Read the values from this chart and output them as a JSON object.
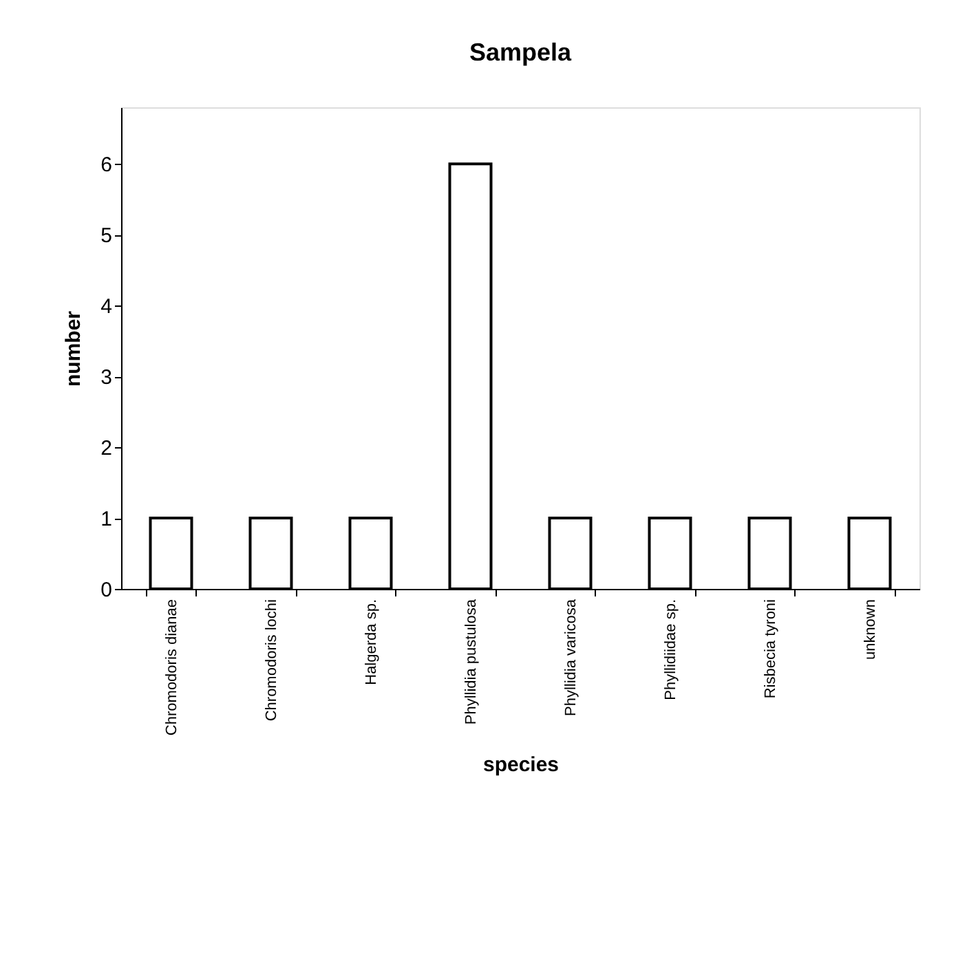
{
  "chart_data": {
    "type": "bar",
    "title": "Sampela",
    "xlabel": "species",
    "ylabel": "number",
    "categories": [
      "Chromodoris dianae",
      "Chromodoris lochi",
      "Halgerda sp.",
      "Phyllidia pustulosa",
      "Phyllidia varicosa",
      "Phyllidiidae sp.",
      "Risbecia tyroni",
      "unknown"
    ],
    "values": [
      1,
      1,
      1,
      6,
      1,
      1,
      1,
      1
    ],
    "color": "#ffffff",
    "ylim": [
      0,
      6.8
    ],
    "yticks": [
      0,
      1,
      2,
      3,
      4,
      5,
      6
    ],
    "grid": false
  }
}
